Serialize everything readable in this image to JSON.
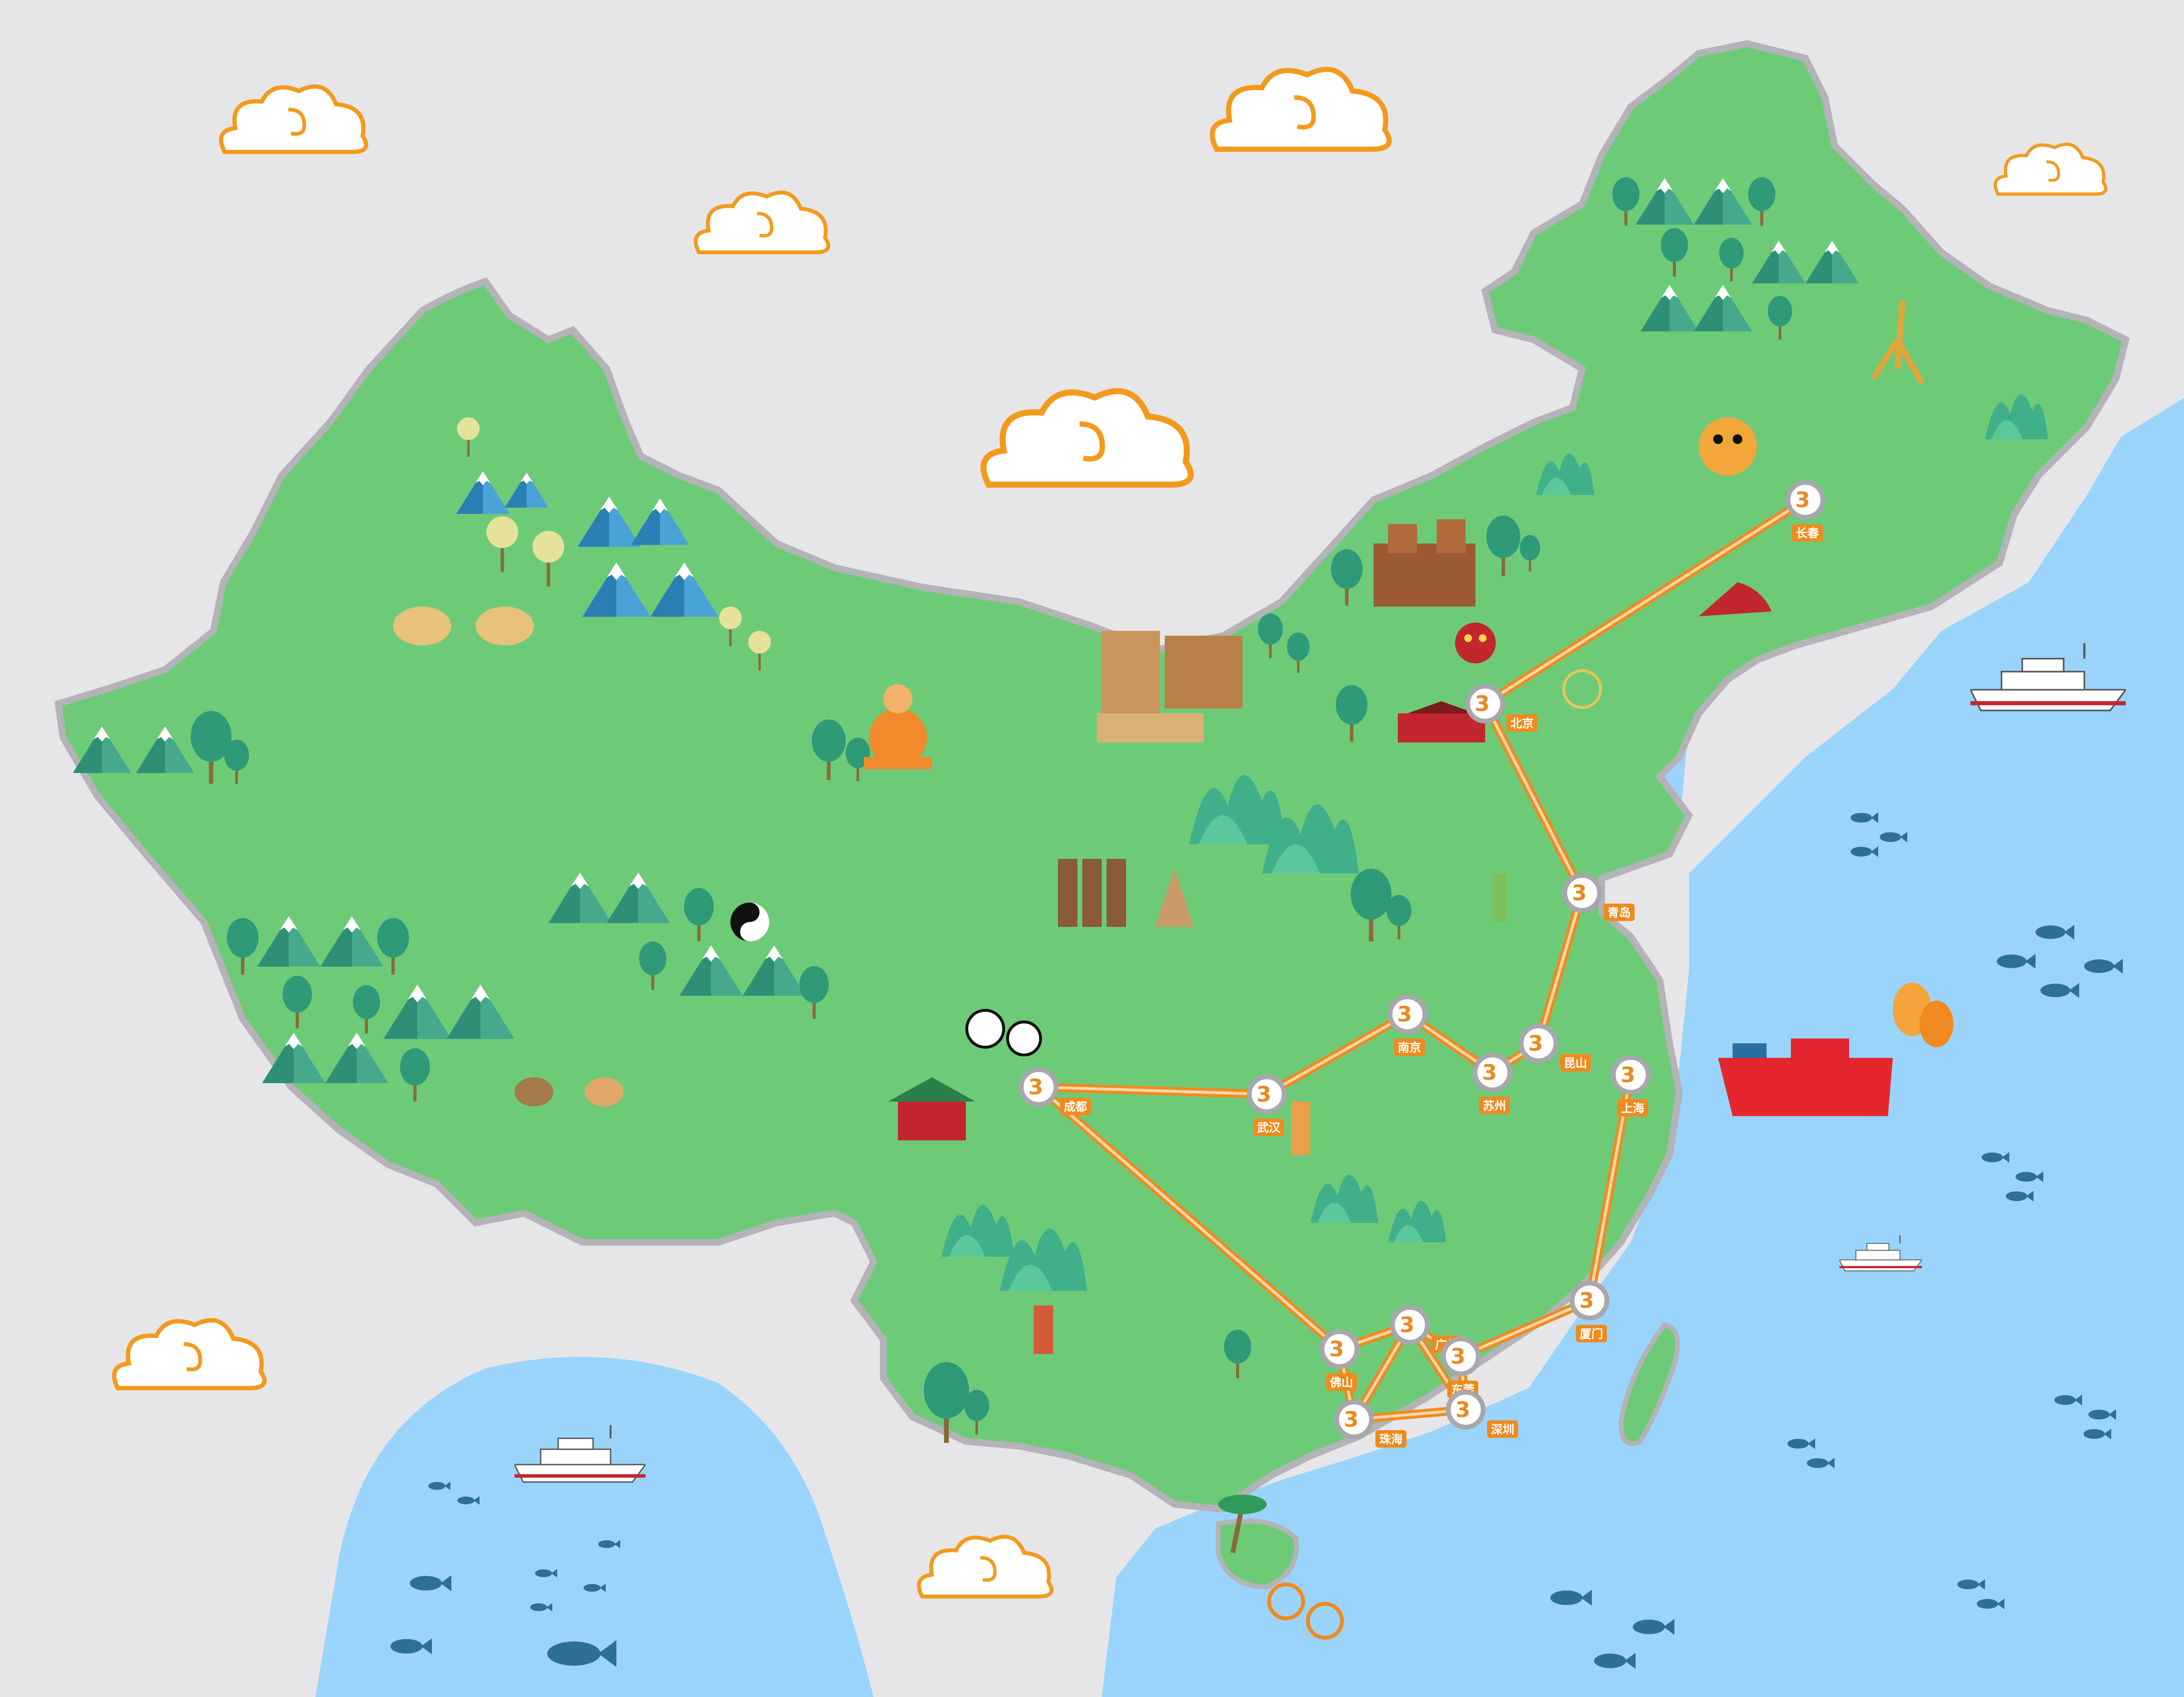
{
  "colors": {
    "background": "#e6e6e8",
    "land": "#6dcb78",
    "land_border": "#b3b3b8",
    "sea": "#9ad4fb",
    "route": "#ef8a1f",
    "route_inner": "#f6d7a9",
    "node_ring": "#e88a1f",
    "node_fill": "#a7a7ad",
    "label_bg": "#ef8a1f",
    "cloud_stroke": "#f39a1e"
  },
  "cities": [
    {
      "id": "changchun",
      "name": "长春",
      "icon": "3d-node"
    },
    {
      "id": "beijing",
      "name": "北京",
      "icon": "3d-node"
    },
    {
      "id": "qingdao",
      "name": "青岛",
      "icon": "3d-node"
    },
    {
      "id": "nanjing",
      "name": "南京",
      "icon": "3d-node"
    },
    {
      "id": "kunshan",
      "name": "昆山",
      "icon": "3d-node"
    },
    {
      "id": "suzhou",
      "name": "苏州",
      "icon": "3d-node"
    },
    {
      "id": "shanghai",
      "name": "上海",
      "icon": "3d-node"
    },
    {
      "id": "chengdu",
      "name": "成都",
      "icon": "3d-node"
    },
    {
      "id": "wuhan",
      "name": "武汉",
      "icon": "3d-node"
    },
    {
      "id": "xiamen",
      "name": "厦门",
      "icon": "3d-node"
    },
    {
      "id": "guangzhou",
      "name": "广州",
      "icon": "3d-node"
    },
    {
      "id": "foshan",
      "name": "佛山",
      "icon": "3d-node"
    },
    {
      "id": "dongguan",
      "name": "东莞",
      "icon": "3d-node"
    },
    {
      "id": "shenzhen",
      "name": "深圳",
      "icon": "3d-node"
    },
    {
      "id": "zhuhai",
      "name": "珠海",
      "icon": "3d-node"
    }
  ],
  "node_glyph": "3",
  "routes": [
    [
      "changchun",
      "beijing"
    ],
    [
      "beijing",
      "qingdao"
    ],
    [
      "qingdao",
      "kunshan"
    ],
    [
      "chengdu",
      "wuhan"
    ],
    [
      "wuhan",
      "nanjing"
    ],
    [
      "nanjing",
      "suzhou"
    ],
    [
      "suzhou",
      "kunshan"
    ],
    [
      "shanghai",
      "xiamen"
    ],
    [
      "xiamen",
      "dongguan"
    ],
    [
      "dongguan",
      "guangzhou"
    ],
    [
      "guangzhou",
      "foshan"
    ],
    [
      "guangzhou",
      "shenzhen"
    ],
    [
      "shenzhen",
      "dongguan"
    ],
    [
      "guangzhou",
      "zhuhai"
    ],
    [
      "foshan",
      "zhuhai"
    ],
    [
      "zhuhai",
      "shenzhen"
    ],
    [
      "chengdu",
      "foshan"
    ]
  ],
  "landmarks": [
    "great-wall-icon",
    "terracotta-warriors-icon",
    "panda-icon",
    "buddha-icon",
    "camel-icon",
    "goat-icon",
    "tiger-icon",
    "ginseng-icon",
    "dragon-icon",
    "tiananmen-icon",
    "pagoda-icon",
    "yin-yang-icon",
    "ship-icon",
    "balloon-icon",
    "palm-tree-icon",
    "fish-icon"
  ]
}
